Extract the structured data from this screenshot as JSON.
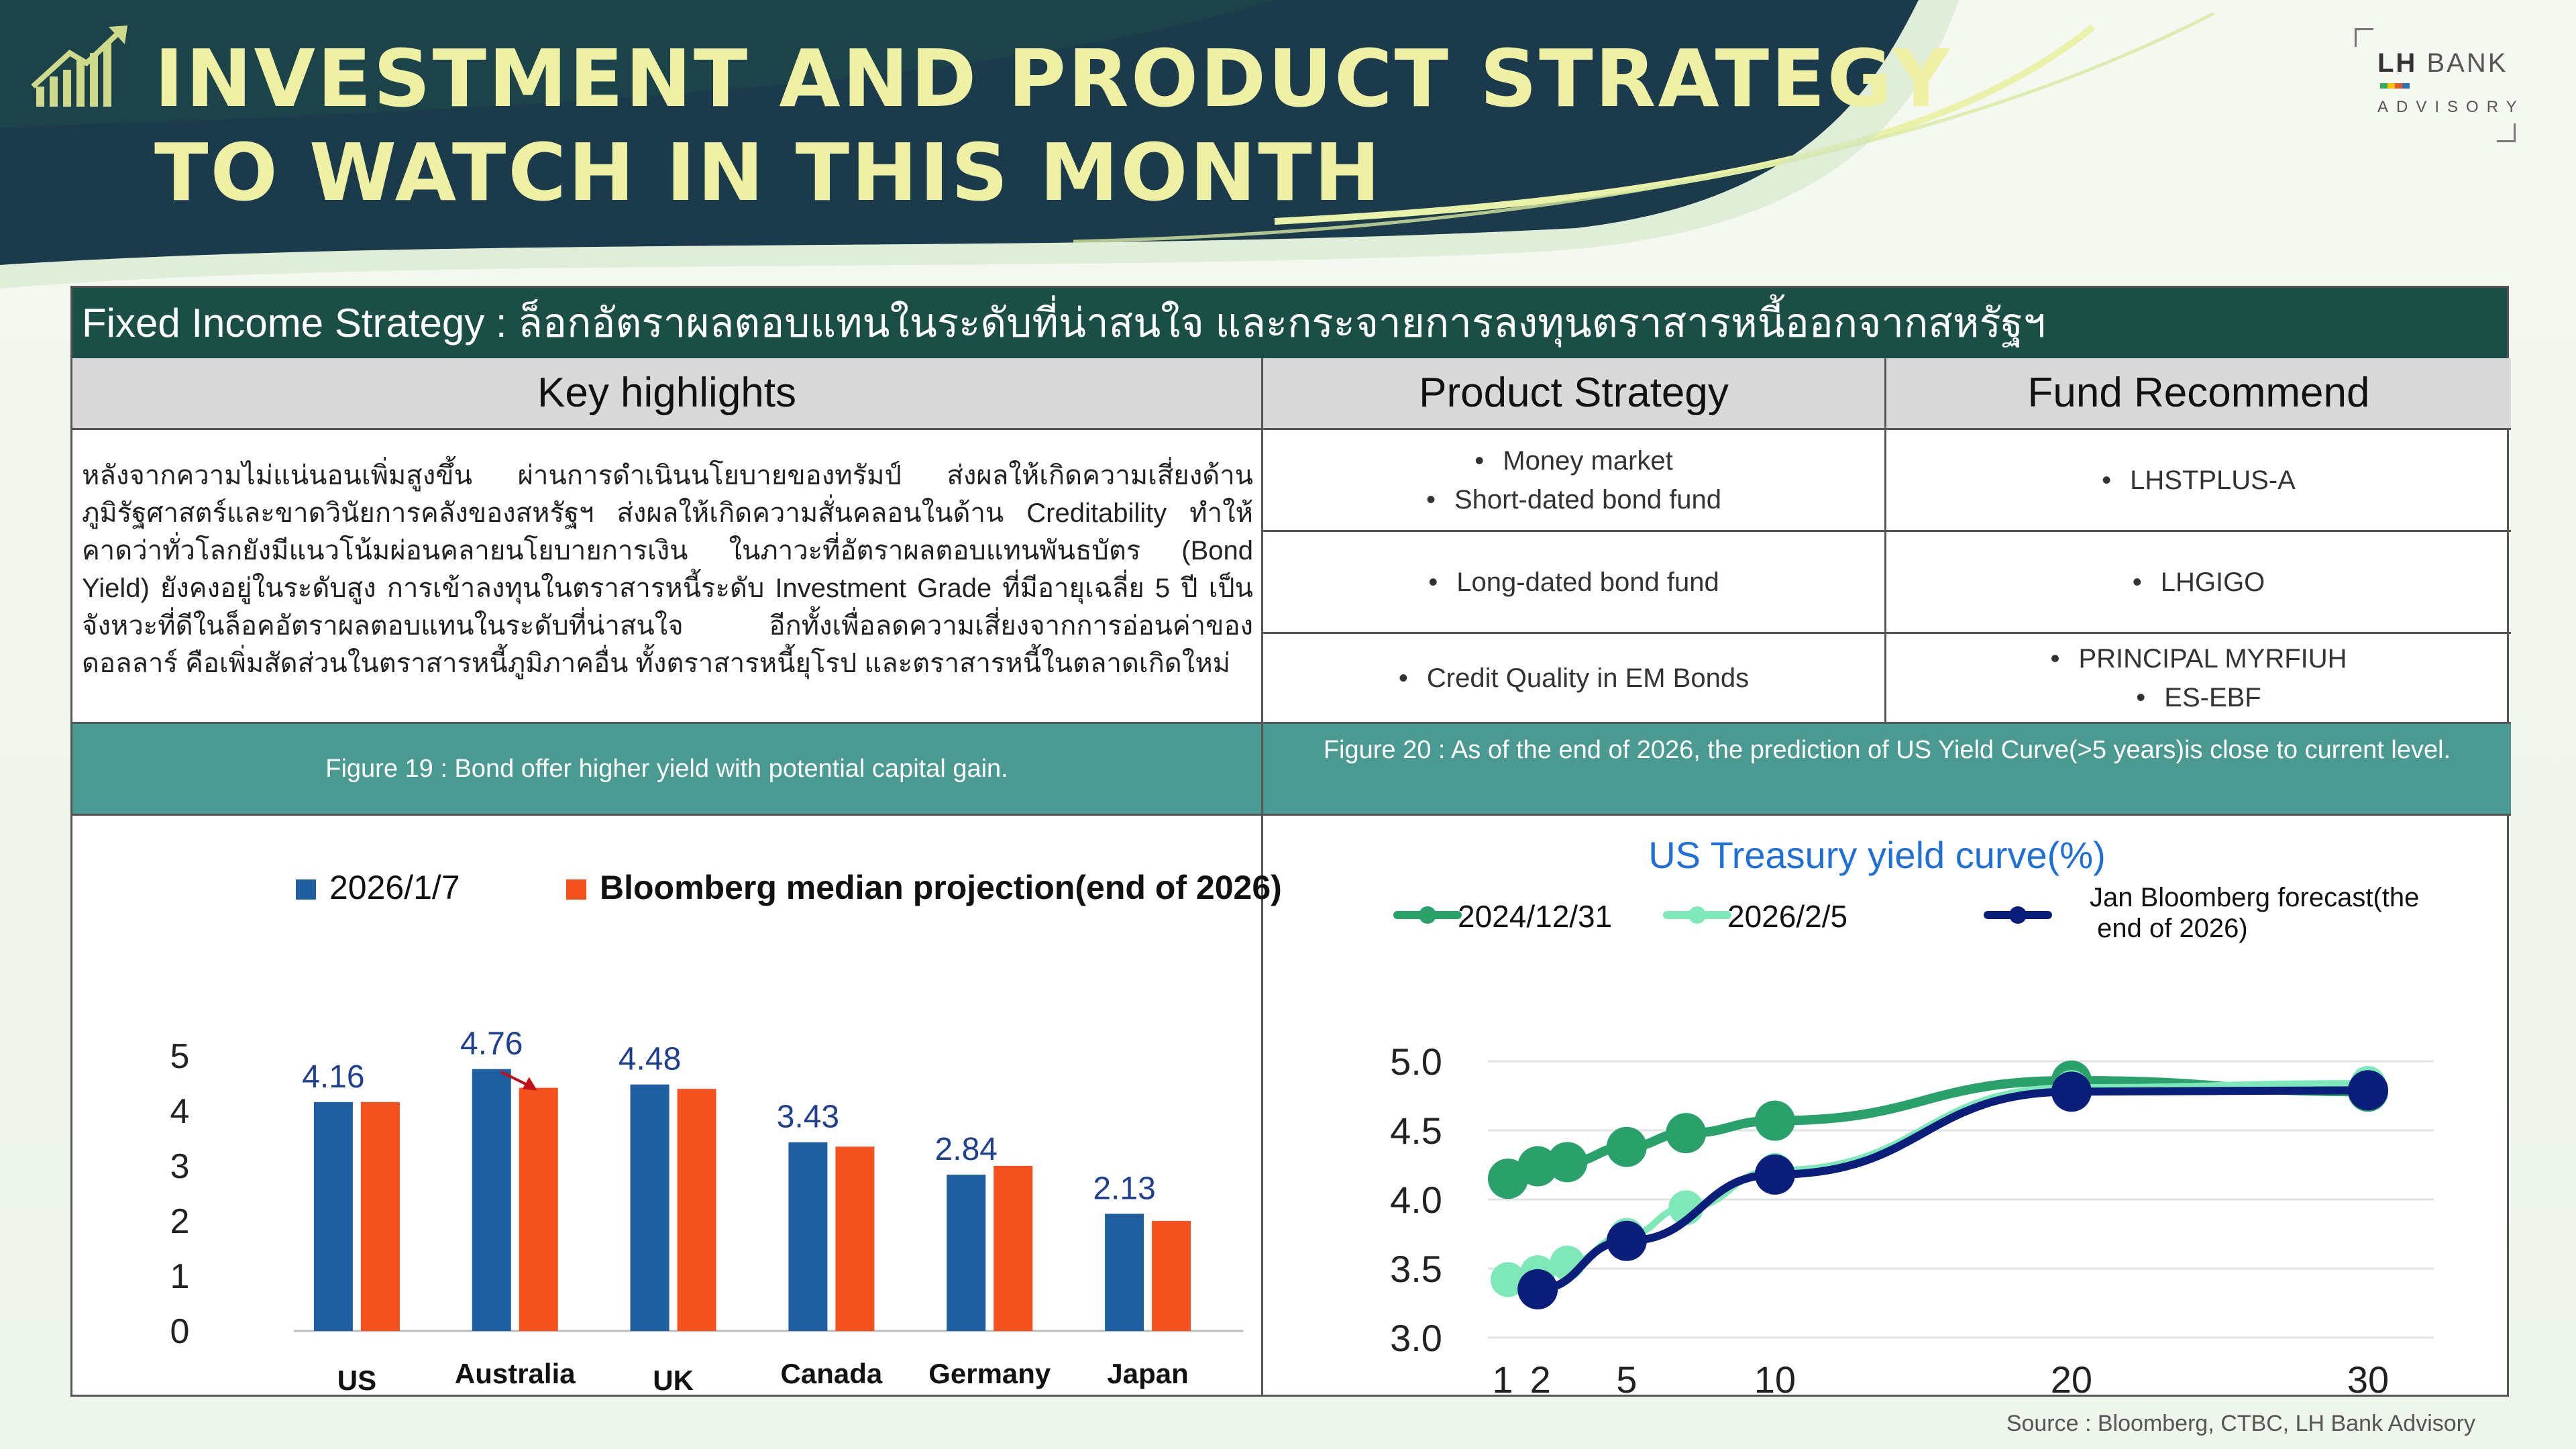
{
  "header": {
    "title_line1": "INVESTMENT AND PRODUCT STRATEGY",
    "title_line2": "TO WATCH IN THIS MONTH",
    "icon": "rising-bar-chart-icon",
    "brand_name_bold": "LH",
    "brand_name": "BANK",
    "brand_sub": "ADVISORY"
  },
  "strategy_bar": "Fixed Income Strategy : ล็อกอัตราผลตอบแทนในระดับที่น่าสนใจ และกระจายการลงทุนตราสารหนี้ออกจากสหรัฐฯ",
  "table": {
    "headers": {
      "key": "Key highlights",
      "product": "Product Strategy",
      "fund": "Fund Recommend"
    },
    "highlights": "หลังจากความไม่แน่นอนเพิ่มสูงขึ้น ผ่านการดำเนินนโยบายของทรัมป์ ส่งผลให้เกิดความเสี่ยงด้านภูมิรัฐศาสตร์และขาดวินัยการคลังของสหรัฐฯ ส่งผลให้เกิดความสั่นคลอนในด้าน Creditability ทำให้คาดว่าทั่วโลกยังมีแนวโน้มผ่อนคลายนโยบายการเงิน ในภาวะที่อัตราผลตอบแทนพันธบัตร (Bond Yield) ยังคงอยู่ในระดับสูง การเข้าลงทุนในตราสารหนี้ระดับ Investment Grade ที่มีอายุเฉลี่ย 5 ปี เป็นจังหวะที่ดีในล็อคอัตราผลตอบแทนในระดับที่น่าสนใจ อีกทั้งเพื่อลดความเสี่ยงจากการอ่อนค่าของดอลลาร์ คือเพิ่มสัดส่วนในตราสารหนี้ภูมิภาคอื่น ทั้งตราสารหนี้ยุโรป และตราสารหนี้ในตลาดเกิดใหม่",
    "rows": [
      {
        "products": [
          "Money market",
          "Short-dated bond fund"
        ],
        "funds": [
          "LHSTPLUS-A"
        ]
      },
      {
        "products": [
          "Long-dated bond fund"
        ],
        "funds": [
          "LHGIGO"
        ]
      },
      {
        "products": [
          "Credit Quality in EM Bonds"
        ],
        "funds": [
          "PRINCIPAL MYRFIUH",
          "ES-EBF"
        ]
      }
    ]
  },
  "figures": {
    "fig19_caption": "Figure 19 : Bond offer higher yield with potential capital gain.",
    "fig20_caption": "Figure 20 : As of the end of 2026, the prediction of US Yield Curve(>5 years)is close to current level."
  },
  "chart_data": [
    {
      "type": "bar",
      "title": "",
      "categories": [
        "US",
        "Australia",
        "UK",
        "Canada",
        "Germany",
        "Japan"
      ],
      "series": [
        {
          "name": "2026/1/7",
          "color": "#1f5fa0",
          "values": [
            4.16,
            4.76,
            4.48,
            3.43,
            2.84,
            2.13
          ],
          "labels": [
            "4.16",
            "4.76",
            "4.48",
            "3.43",
            "2.84",
            "2.13"
          ]
        },
        {
          "name": "Bloomberg median projection(end of 2026)",
          "color": "#f4511e",
          "values": [
            4.16,
            4.42,
            4.4,
            3.35,
            3.0,
            2.0
          ]
        }
      ],
      "ylim": [
        0,
        5
      ],
      "yticks": [
        "0",
        "1",
        "2",
        "3",
        "4",
        "5"
      ],
      "annotation": "red arrow from Australia 2026/1/7 bar to projection bar",
      "grid": false,
      "legend_position": "top"
    },
    {
      "type": "line",
      "title": "US Treasury yield curve(%)",
      "x_ticks": [
        1,
        2,
        5,
        10,
        20,
        30
      ],
      "x_tick_labels": [
        "1",
        "2",
        "5",
        "10",
        "20",
        "30"
      ],
      "ylim": [
        3.0,
        5.0
      ],
      "yticks": [
        "3.0",
        "3.5",
        "4.0",
        "4.5",
        "5.0"
      ],
      "grid": true,
      "legend_position": "top",
      "series": [
        {
          "name": "2024/12/31",
          "color": "#2aa06b",
          "points": [
            [
              1,
              4.15
            ],
            [
              2,
              4.24
            ],
            [
              3,
              4.27
            ],
            [
              5,
              4.38
            ],
            [
              7,
              4.48
            ],
            [
              10,
              4.57
            ],
            [
              20,
              4.86
            ],
            [
              30,
              4.78
            ]
          ]
        },
        {
          "name": "2026/2/5",
          "color": "#7ee8b8",
          "points": [
            [
              1,
              3.42
            ],
            [
              2,
              3.47
            ],
            [
              3,
              3.54
            ],
            [
              5,
              3.74
            ],
            [
              7,
              3.94
            ],
            [
              10,
              4.21
            ],
            [
              20,
              4.81
            ],
            [
              30,
              4.84
            ]
          ]
        },
        {
          "name": "Jan Bloomberg forecast(the end of 2026)",
          "color": "#0b1f7a",
          "points": [
            [
              2,
              3.35
            ],
            [
              5,
              3.7
            ],
            [
              10,
              4.18
            ],
            [
              20,
              4.78
            ],
            [
              30,
              4.79
            ]
          ]
        }
      ]
    }
  ],
  "source": "Source : Bloomberg,  CTBC, LH Bank Advisory"
}
